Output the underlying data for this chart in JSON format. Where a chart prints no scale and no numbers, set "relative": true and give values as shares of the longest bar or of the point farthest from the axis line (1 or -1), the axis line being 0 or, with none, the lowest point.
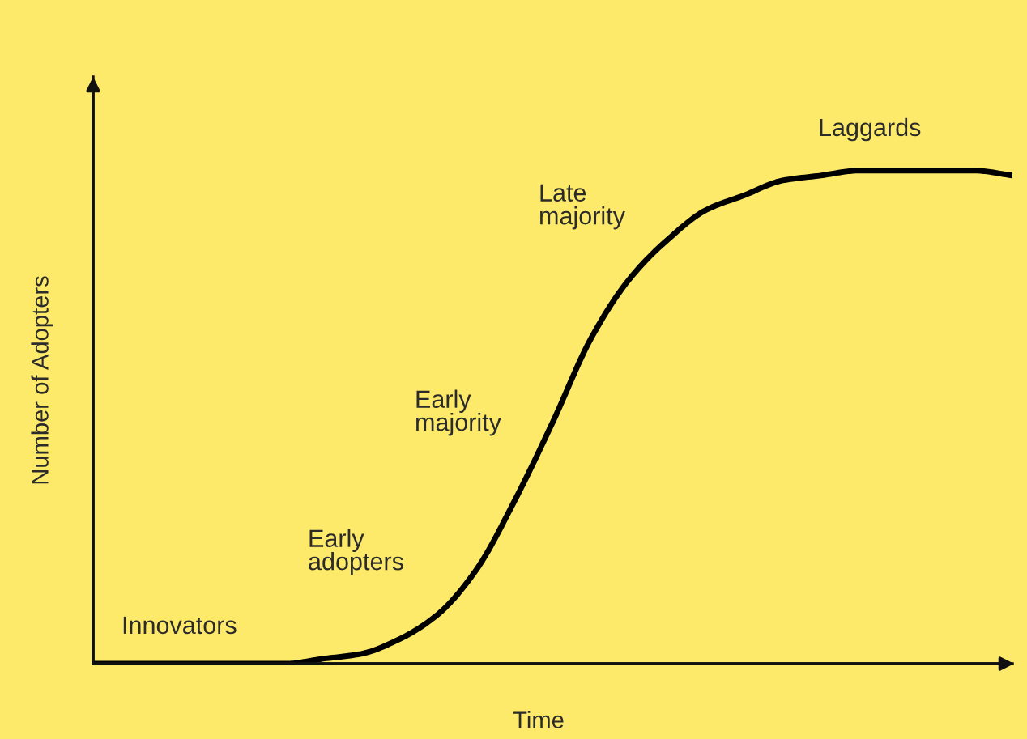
{
  "chart_data": {
    "type": "line",
    "relative": true,
    "xlabel": "Time",
    "ylabel": "Number of Adopters",
    "color": "#000000",
    "marker": "none",
    "line_style": "solid",
    "grid": false,
    "legend": false,
    "categories": [
      null,
      null,
      null,
      null,
      null,
      null,
      null,
      null,
      null,
      null,
      null,
      null,
      null,
      null,
      null,
      null,
      null,
      null,
      null,
      null,
      null,
      null,
      null,
      null,
      null
    ],
    "values": [
      0,
      0,
      0,
      0,
      0,
      0,
      0.01,
      0.02,
      0.05,
      0.1,
      0.19,
      0.33,
      0.49,
      0.66,
      0.78,
      0.86,
      0.92,
      0.95,
      0.98,
      0.99,
      1,
      1,
      1,
      1,
      0.99
    ],
    "annotations": [
      "Innovators",
      "Early\nadopters",
      "Early\nmajority",
      "Late\nmajority",
      "Laggards"
    ]
  }
}
